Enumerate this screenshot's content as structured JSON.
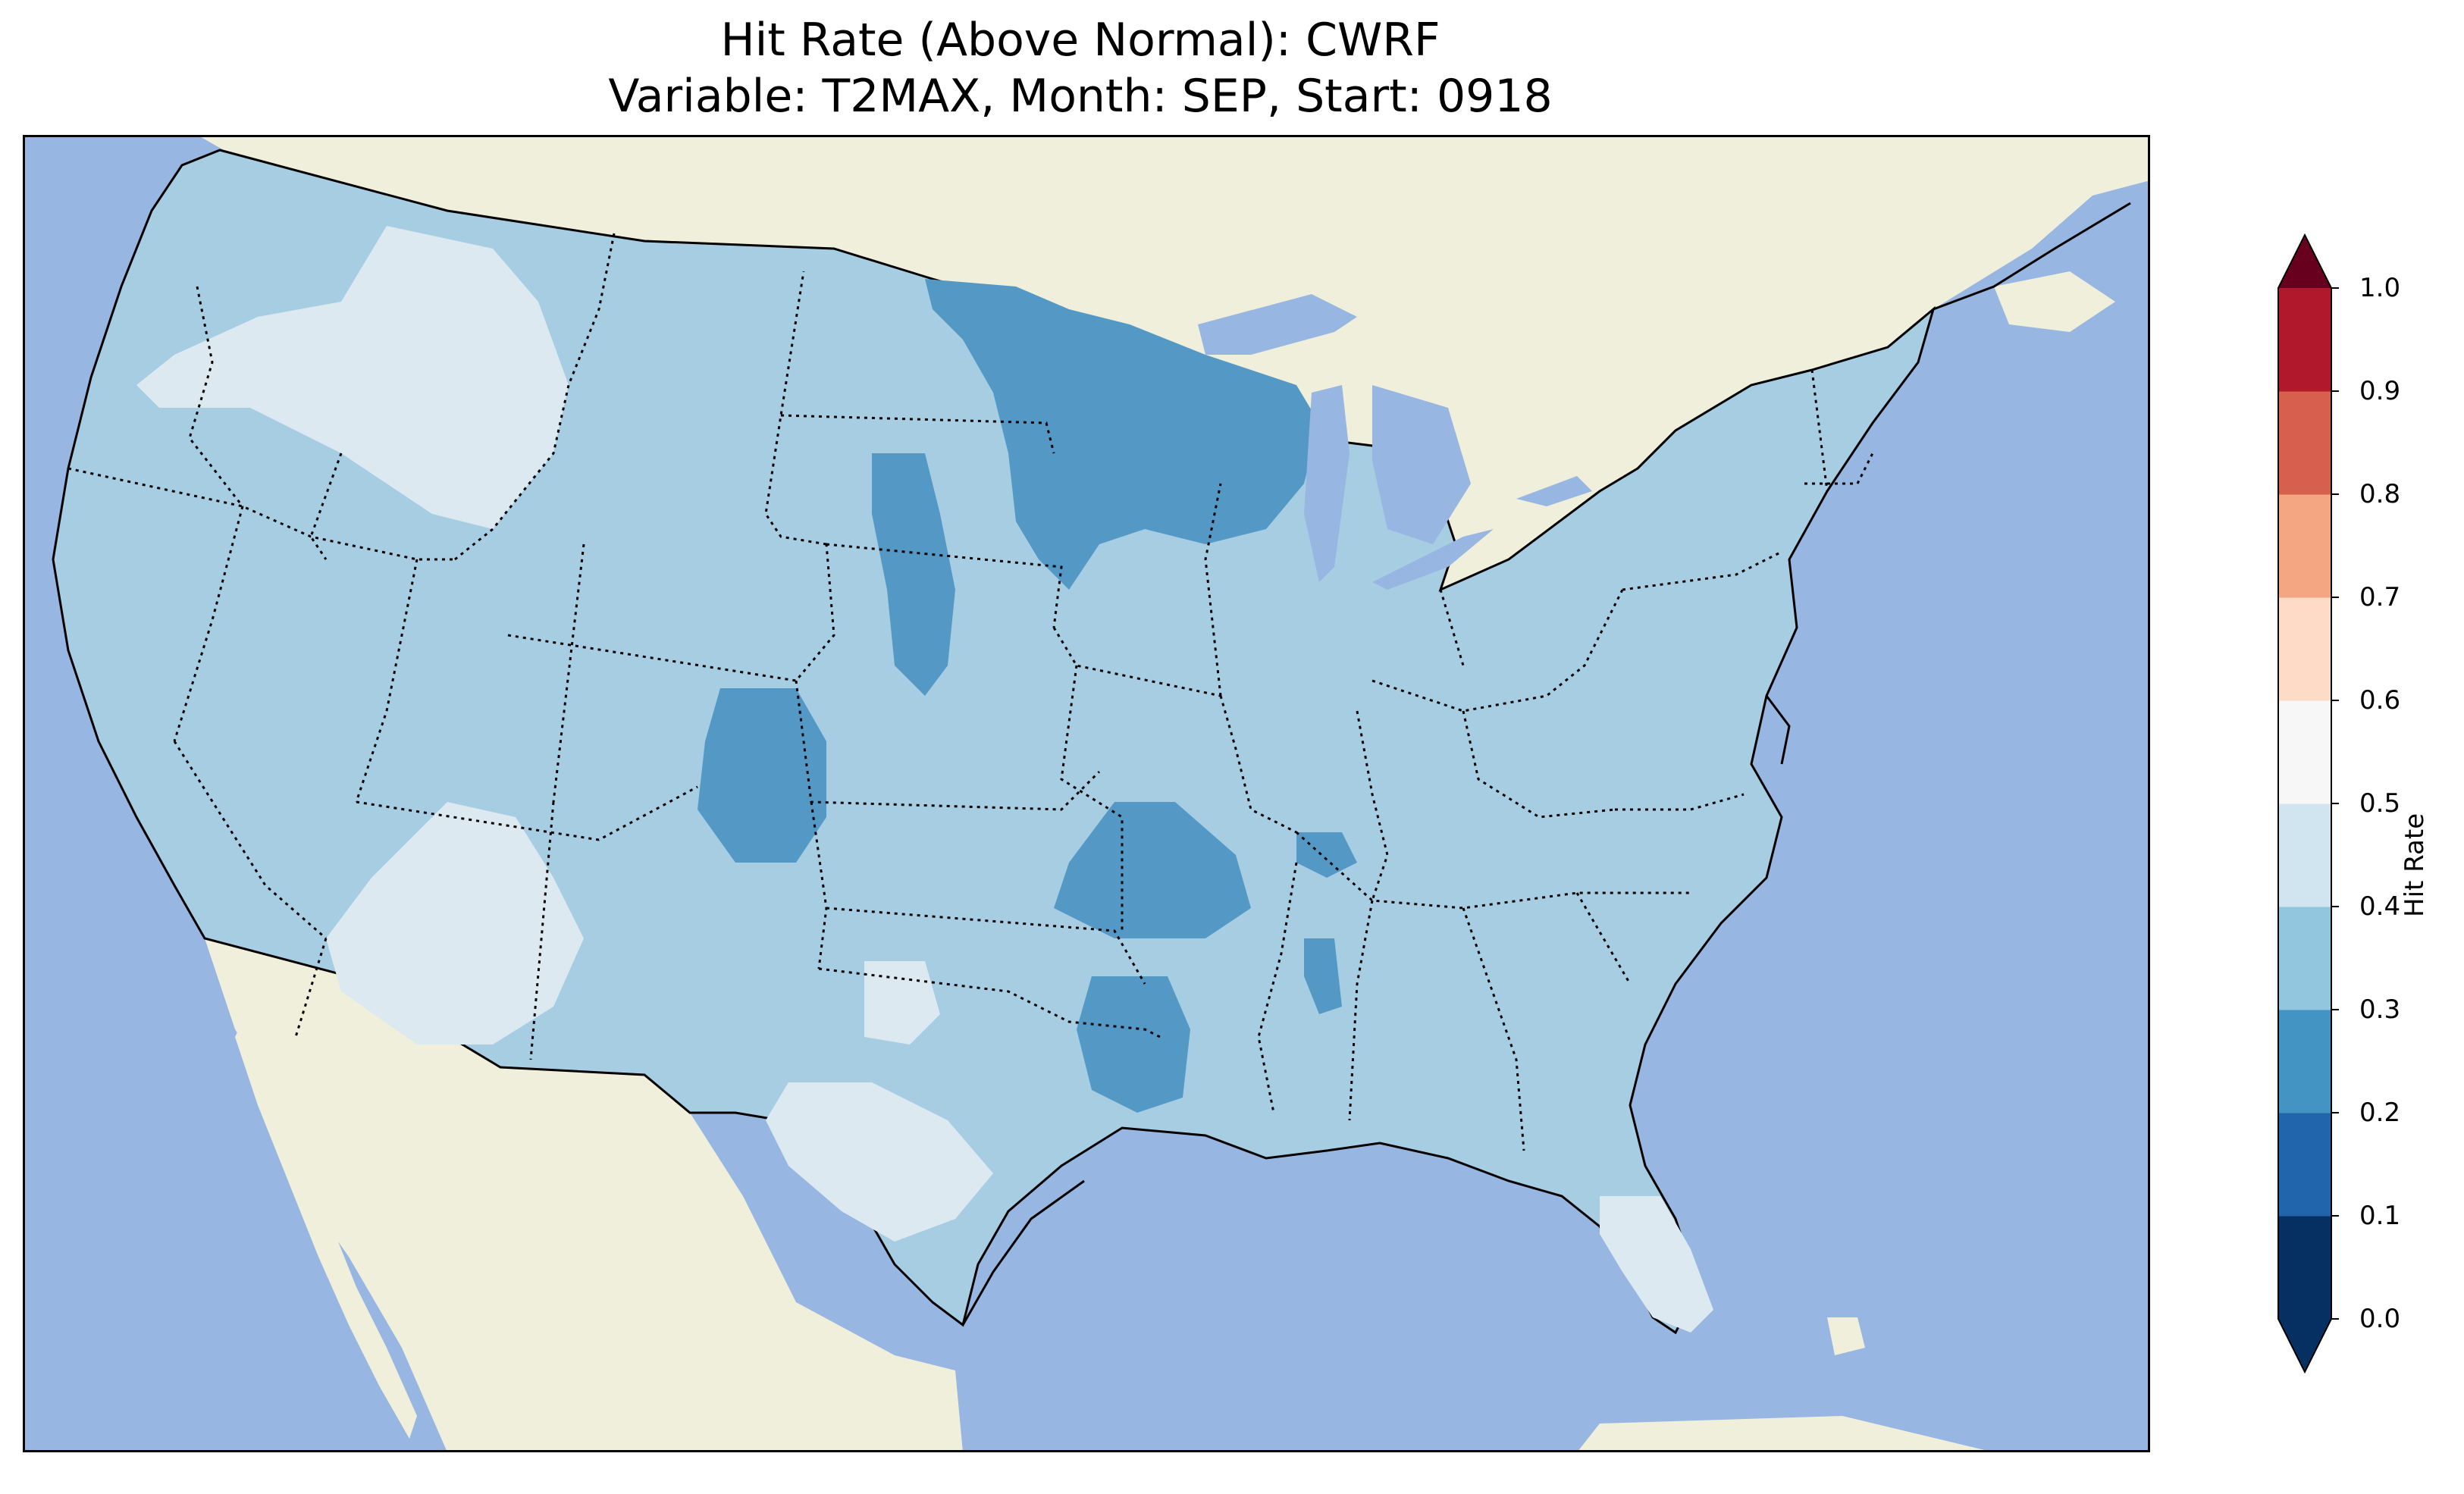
{
  "title": {
    "line1": "Hit Rate (Above Normal): CWRF",
    "line2": "Variable: T2MAX, Month: SEP, Start: 0918"
  },
  "colorbar": {
    "label": "Hit Rate",
    "ticks": [
      "0.0",
      "0.1",
      "0.2",
      "0.3",
      "0.4",
      "0.5",
      "0.6",
      "0.7",
      "0.8",
      "0.9",
      "1.0"
    ],
    "colors": [
      "#053061",
      "#2166ac",
      "#4393c3",
      "#92c5de",
      "#d1e5f0",
      "#f7f7f7",
      "#fddbc7",
      "#f4a582",
      "#d6604d",
      "#b2182b",
      "#67001f"
    ],
    "extend": "both"
  },
  "map": {
    "projection": "Lambert Conformal, CONUS",
    "ocean_color": "#97b6e1",
    "land_color": "#efefdb",
    "dominant_class": "0.3–0.4",
    "regions": [
      {
        "name": "CONUS background",
        "class": "0.3-0.4",
        "color": "#a7cde3"
      },
      {
        "name": "Northern Rockies / Idaho / Oregon",
        "class": "0.4-0.5",
        "color": "#dde9f1"
      },
      {
        "name": "Arizona / Southern California",
        "class": "0.4-0.5",
        "color": "#dde9f1"
      },
      {
        "name": "West Texas",
        "class": "0.4-0.5",
        "color": "#dde9f1"
      },
      {
        "name": "Florida Peninsula",
        "class": "0.4-0.5",
        "color": "#dde9f1"
      },
      {
        "name": "Minnesota / Wisconsin / Upper Michigan",
        "class": "0.2-0.3",
        "color": "#5499c6"
      },
      {
        "name": "Colorado",
        "class": "0.2-0.3",
        "color": "#5499c6"
      },
      {
        "name": "Nebraska Sandhills",
        "class": "0.2-0.3",
        "color": "#5499c6"
      },
      {
        "name": "Missouri Ozarks",
        "class": "0.2-0.3",
        "color": "#5499c6"
      },
      {
        "name": "NE Texas / Louisiana border",
        "class": "0.2-0.3",
        "color": "#5499c6"
      }
    ]
  }
}
